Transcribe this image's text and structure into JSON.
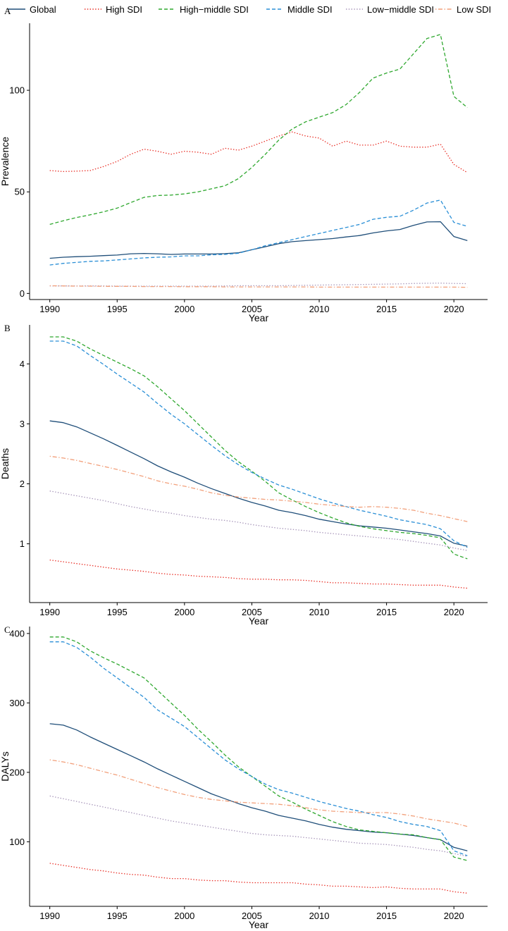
{
  "legend": [
    {
      "name": "Global",
      "color": "#1f4e79",
      "dash": "solid"
    },
    {
      "name": "High SDI",
      "color": "#e8281f",
      "dash": "dotted"
    },
    {
      "name": "High−middle SDI",
      "color": "#2fa82f",
      "dash": "dashed"
    },
    {
      "name": "Middle SDI",
      "color": "#2a8fd6",
      "dash": "dashed"
    },
    {
      "name": "Low−middle SDI",
      "color": "#a593b8",
      "dash": "dotted"
    },
    {
      "name": "Low SDI",
      "color": "#f2a07b",
      "dash": "dotdash"
    }
  ],
  "chart_data": [
    {
      "type": "line",
      "panel_label": "A",
      "xlabel": "Year",
      "ylabel": "Prevalence",
      "x": [
        1990,
        1991,
        1992,
        1993,
        1994,
        1995,
        1996,
        1997,
        1998,
        1999,
        2000,
        2001,
        2002,
        2003,
        2004,
        2005,
        2006,
        2007,
        2008,
        2009,
        2010,
        2011,
        2012,
        2013,
        2014,
        2015,
        2016,
        2017,
        2018,
        2019,
        2020,
        2021
      ],
      "xticks": [
        1990,
        1995,
        2000,
        2005,
        2010,
        2015,
        2020
      ],
      "yticks": [
        0,
        50,
        100
      ],
      "ylim": [
        -3,
        133
      ],
      "series": [
        {
          "name": "Global",
          "values": [
            17.3,
            17.8,
            18.1,
            18.3,
            18.6,
            18.9,
            19.5,
            19.7,
            19.5,
            19.2,
            19.4,
            19.4,
            19.4,
            19.6,
            20.0,
            21.5,
            23.0,
            24.5,
            25.5,
            26.0,
            26.5,
            27.0,
            27.8,
            28.5,
            29.8,
            30.8,
            31.5,
            33.5,
            35.2,
            35.3,
            28.0,
            26.0
          ]
        },
        {
          "name": "High SDI",
          "values": [
            60.5,
            60.0,
            60.2,
            60.5,
            62.5,
            65.0,
            68.5,
            71.0,
            70.0,
            68.5,
            70.0,
            69.5,
            68.5,
            71.5,
            70.5,
            72.5,
            75.0,
            77.5,
            79.5,
            77.5,
            76.5,
            72.5,
            75.0,
            73.0,
            73.0,
            75.0,
            72.5,
            72.0,
            72.0,
            73.5,
            63.5,
            59.5
          ]
        },
        {
          "name": "High−middle SDI",
          "values": [
            34.0,
            35.8,
            37.4,
            38.7,
            40.2,
            42.0,
            44.7,
            47.3,
            48.2,
            48.4,
            49.0,
            50.0,
            51.5,
            53.0,
            56.5,
            62.0,
            68.5,
            75.5,
            81.0,
            84.5,
            86.8,
            89.0,
            93.0,
            99.0,
            106.0,
            108.5,
            110.5,
            118.0,
            125.5,
            127.5,
            97.0,
            91.5
          ]
        },
        {
          "name": "Middle SDI",
          "values": [
            14.0,
            14.8,
            15.3,
            15.8,
            16.0,
            16.5,
            17.0,
            17.5,
            17.8,
            18.0,
            18.5,
            18.5,
            19.0,
            19.2,
            19.8,
            21.5,
            23.5,
            25.0,
            26.5,
            28.0,
            29.5,
            31.0,
            32.5,
            34.0,
            36.5,
            37.5,
            38.0,
            41.0,
            44.5,
            46.0,
            35.0,
            33.0
          ]
        },
        {
          "name": "Low−middle SDI",
          "values": [
            3.7,
            3.7,
            3.7,
            3.7,
            3.7,
            3.6,
            3.6,
            3.6,
            3.6,
            3.6,
            3.6,
            3.6,
            3.6,
            3.7,
            3.8,
            3.8,
            3.8,
            3.8,
            3.9,
            4.0,
            4.1,
            4.2,
            4.3,
            4.4,
            4.5,
            4.6,
            4.7,
            4.9,
            5.0,
            5.1,
            4.9,
            4.8
          ]
        },
        {
          "name": "Low SDI",
          "values": [
            3.8,
            3.7,
            3.6,
            3.6,
            3.5,
            3.5,
            3.5,
            3.4,
            3.4,
            3.4,
            3.3,
            3.3,
            3.3,
            3.2,
            3.2,
            3.2,
            3.2,
            3.2,
            3.2,
            3.2,
            3.1,
            3.1,
            3.1,
            3.1,
            3.1,
            3.1,
            3.1,
            3.1,
            3.1,
            3.1,
            3.1,
            3.0
          ]
        }
      ]
    },
    {
      "type": "line",
      "panel_label": "B",
      "xlabel": "Year",
      "ylabel": "Deaths",
      "x": [
        1990,
        1991,
        1992,
        1993,
        1994,
        1995,
        1996,
        1997,
        1998,
        1999,
        2000,
        2001,
        2002,
        2003,
        2004,
        2005,
        2006,
        2007,
        2008,
        2009,
        2010,
        2011,
        2012,
        2013,
        2014,
        2015,
        2016,
        2017,
        2018,
        2019,
        2020,
        2021
      ],
      "xticks": [
        1990,
        1995,
        2000,
        2005,
        2010,
        2015,
        2020
      ],
      "yticks": [
        1,
        2,
        3,
        4
      ],
      "ylim": [
        0.02,
        4.65
      ],
      "series": [
        {
          "name": "Global",
          "values": [
            3.05,
            3.02,
            2.95,
            2.85,
            2.75,
            2.64,
            2.53,
            2.42,
            2.3,
            2.2,
            2.11,
            2.01,
            1.92,
            1.84,
            1.76,
            1.69,
            1.63,
            1.56,
            1.52,
            1.47,
            1.41,
            1.37,
            1.33,
            1.3,
            1.28,
            1.26,
            1.23,
            1.2,
            1.17,
            1.13,
            1.01,
            0.96
          ]
        },
        {
          "name": "High SDI",
          "values": [
            0.73,
            0.7,
            0.67,
            0.64,
            0.61,
            0.58,
            0.56,
            0.54,
            0.51,
            0.49,
            0.48,
            0.46,
            0.45,
            0.44,
            0.42,
            0.41,
            0.41,
            0.4,
            0.4,
            0.39,
            0.37,
            0.35,
            0.35,
            0.34,
            0.33,
            0.33,
            0.32,
            0.31,
            0.31,
            0.31,
            0.28,
            0.26
          ]
        },
        {
          "name": "High−middle SDI",
          "values": [
            4.45,
            4.45,
            4.38,
            4.25,
            4.14,
            4.03,
            3.92,
            3.8,
            3.62,
            3.42,
            3.22,
            3.0,
            2.78,
            2.56,
            2.37,
            2.21,
            2.04,
            1.85,
            1.73,
            1.62,
            1.52,
            1.43,
            1.35,
            1.29,
            1.25,
            1.22,
            1.19,
            1.17,
            1.14,
            1.1,
            0.83,
            0.75
          ]
        },
        {
          "name": "Middle SDI",
          "values": [
            4.38,
            4.38,
            4.3,
            4.14,
            3.99,
            3.83,
            3.68,
            3.53,
            3.34,
            3.16,
            3.0,
            2.82,
            2.64,
            2.47,
            2.32,
            2.19,
            2.08,
            1.98,
            1.91,
            1.83,
            1.75,
            1.68,
            1.62,
            1.56,
            1.51,
            1.46,
            1.4,
            1.36,
            1.32,
            1.25,
            1.05,
            0.94
          ]
        },
        {
          "name": "Low−middle SDI",
          "values": [
            1.88,
            1.84,
            1.8,
            1.76,
            1.72,
            1.67,
            1.62,
            1.58,
            1.54,
            1.51,
            1.47,
            1.44,
            1.41,
            1.39,
            1.36,
            1.32,
            1.29,
            1.26,
            1.24,
            1.22,
            1.19,
            1.17,
            1.15,
            1.13,
            1.11,
            1.09,
            1.07,
            1.04,
            1.01,
            0.98,
            0.93,
            0.89
          ]
        },
        {
          "name": "Low SDI",
          "values": [
            2.46,
            2.43,
            2.39,
            2.34,
            2.29,
            2.24,
            2.18,
            2.12,
            2.05,
            2.0,
            1.96,
            1.91,
            1.85,
            1.81,
            1.78,
            1.76,
            1.74,
            1.73,
            1.71,
            1.69,
            1.66,
            1.64,
            1.62,
            1.61,
            1.62,
            1.61,
            1.59,
            1.56,
            1.51,
            1.47,
            1.42,
            1.37
          ]
        }
      ]
    },
    {
      "type": "line",
      "panel_label": "C",
      "xlabel": "Year",
      "ylabel": "DALYs",
      "x": [
        1990,
        1991,
        1992,
        1993,
        1994,
        1995,
        1996,
        1997,
        1998,
        1999,
        2000,
        2001,
        2002,
        2003,
        2004,
        2005,
        2006,
        2007,
        2008,
        2009,
        2010,
        2011,
        2012,
        2013,
        2014,
        2015,
        2016,
        2017,
        2018,
        2019,
        2020,
        2021
      ],
      "xticks": [
        1990,
        1995,
        2000,
        2005,
        2010,
        2015,
        2020
      ],
      "yticks": [
        100,
        200,
        300,
        400
      ],
      "ylim": [
        7,
        410
      ],
      "series": [
        {
          "name": "Global",
          "values": [
            270,
            268,
            261,
            251,
            242,
            233,
            224,
            215,
            205,
            196,
            187,
            178,
            169,
            162,
            155,
            149,
            144,
            138,
            134,
            130,
            125,
            121,
            118,
            116,
            114,
            113,
            111,
            109,
            106,
            103,
            92,
            87
          ]
        },
        {
          "name": "High SDI",
          "values": [
            69,
            66,
            63,
            60,
            58,
            55,
            53,
            52,
            49,
            47,
            47,
            45,
            44,
            44,
            42,
            41,
            41,
            41,
            41,
            39,
            38,
            36,
            36,
            35,
            34,
            35,
            33,
            32,
            32,
            32,
            28,
            26
          ]
        },
        {
          "name": "High−middle SDI",
          "values": [
            395,
            395,
            388,
            375,
            365,
            356,
            346,
            336,
            318,
            300,
            282,
            262,
            244,
            225,
            208,
            194,
            180,
            166,
            157,
            147,
            138,
            129,
            122,
            117,
            115,
            113,
            111,
            110,
            106,
            103,
            78,
            73
          ]
        },
        {
          "name": "Middle SDI",
          "values": [
            388,
            388,
            380,
            366,
            350,
            336,
            322,
            308,
            290,
            278,
            266,
            250,
            234,
            218,
            205,
            194,
            183,
            175,
            170,
            164,
            158,
            153,
            148,
            144,
            139,
            135,
            129,
            125,
            122,
            116,
            87,
            80
          ]
        },
        {
          "name": "Low−middle SDI",
          "values": [
            166,
            162,
            158,
            154,
            150,
            146,
            142,
            138,
            134,
            130,
            127,
            124,
            121,
            118,
            115,
            112,
            110,
            109,
            108,
            106,
            104,
            102,
            100,
            98,
            97,
            96,
            94,
            92,
            89,
            87,
            83,
            79
          ]
        },
        {
          "name": "Low SDI",
          "values": [
            218,
            215,
            211,
            206,
            201,
            196,
            190,
            184,
            178,
            173,
            168,
            164,
            161,
            159,
            157,
            156,
            155,
            154,
            152,
            149,
            146,
            144,
            143,
            142,
            142,
            142,
            140,
            137,
            133,
            130,
            127,
            122
          ]
        }
      ]
    }
  ]
}
